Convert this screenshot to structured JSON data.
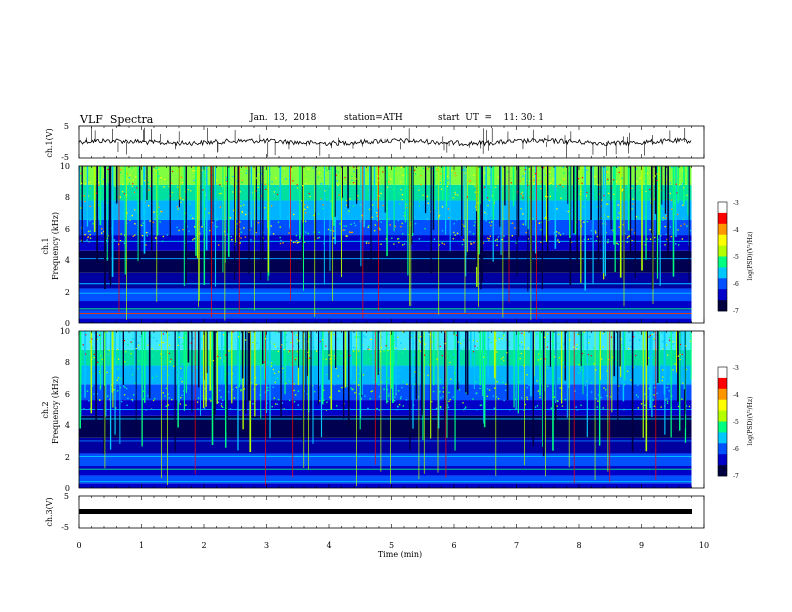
{
  "header": {
    "title": "VLF  Spectra",
    "date": "Jan.  13,  2018",
    "station": "station=ATH",
    "start": "start  UT  =    11: 30: 1"
  },
  "chart_data": [
    {
      "type": "line",
      "name": "ch1-waveform",
      "ylabel": "ch.1(V)",
      "yticks": [
        "5",
        "-5"
      ],
      "ylim": [
        -5,
        5
      ],
      "xlim": [
        0,
        10
      ],
      "grid": false,
      "approx_baseline": 0,
      "data_extent_x": [
        0,
        9.8
      ]
    },
    {
      "type": "heatmap",
      "name": "ch1-spectrogram",
      "ylabel": "ch.1\nFrequency  (kHz)",
      "yticks": [
        "0",
        "2",
        "4",
        "6",
        "8",
        "10"
      ],
      "ylim": [
        0,
        10
      ],
      "xlim": [
        0,
        10
      ],
      "data_extent_x": [
        0,
        9.8
      ],
      "colorbar": {
        "label": "log(PSD)(V²/Hz)",
        "ticks": [
          "-3",
          "-4",
          "-5",
          "-6",
          "-7"
        ],
        "range": [
          -7,
          -3
        ]
      }
    },
    {
      "type": "heatmap",
      "name": "ch2-spectrogram",
      "ylabel": "ch.2\nFrequency  (kHz)",
      "yticks": [
        "0",
        "2",
        "4",
        "6",
        "8",
        "10"
      ],
      "ylim": [
        0,
        10
      ],
      "xlim": [
        0,
        10
      ],
      "data_extent_x": [
        0,
        9.8
      ],
      "colorbar": {
        "label": "log(PSD)(V²/Hz)",
        "ticks": [
          "-3",
          "-4",
          "-5",
          "-6",
          "-7"
        ],
        "range": [
          -7,
          -3
        ]
      }
    },
    {
      "type": "line",
      "name": "ch3-waveform",
      "ylabel": "ch.3(V)",
      "yticks": [
        "5",
        "-5"
      ],
      "ylim": [
        -5,
        5
      ],
      "xlim": [
        0,
        10
      ],
      "approx_level": 0,
      "data_extent_x": [
        0,
        9.8
      ],
      "xlabel": "Time  (min)",
      "xticks": [
        "0",
        "1",
        "2",
        "3",
        "4",
        "5",
        "6",
        "7",
        "8",
        "9",
        "10"
      ]
    }
  ],
  "colors": {
    "colormap": [
      "#000040",
      "#0000c8",
      "#0050ff",
      "#00c8ff",
      "#00ff80",
      "#b4ff00",
      "#ffff00",
      "#ff9600",
      "#ff0000"
    ]
  }
}
